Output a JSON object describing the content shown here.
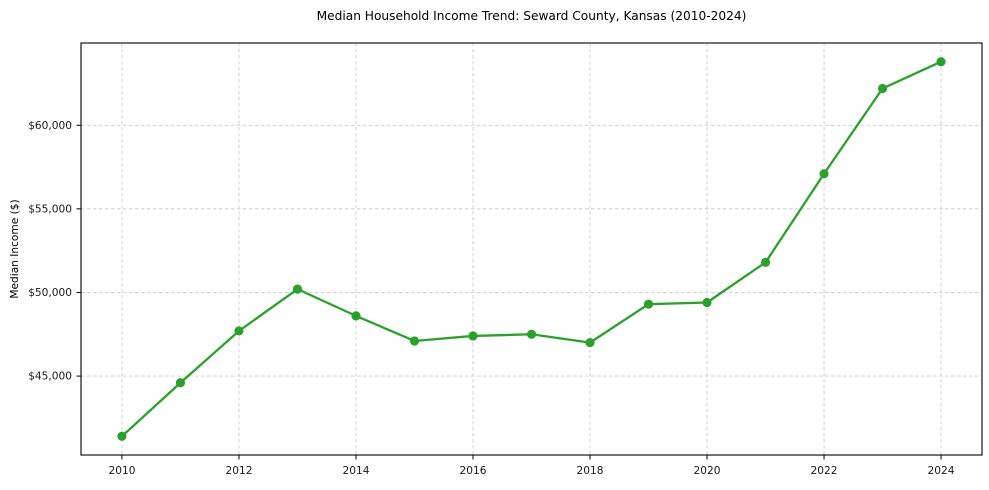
{
  "chart_data": {
    "type": "line",
    "title": "Median Household Income Trend: Seward County, Kansas (2010-2024)",
    "xlabel": "",
    "ylabel": "Median Income ($)",
    "x": [
      2010,
      2011,
      2012,
      2013,
      2014,
      2015,
      2016,
      2017,
      2018,
      2019,
      2020,
      2021,
      2022,
      2023,
      2024
    ],
    "values": [
      41400,
      44600,
      47700,
      50200,
      48600,
      47100,
      47400,
      47500,
      47000,
      49300,
      49400,
      51800,
      57100,
      62200,
      63800
    ],
    "xticks": [
      2010,
      2012,
      2014,
      2016,
      2018,
      2020,
      2022,
      2024
    ],
    "xtick_labels": [
      "2010",
      "2012",
      "2014",
      "2016",
      "2018",
      "2020",
      "2022",
      "2024"
    ],
    "yticks": [
      45000,
      50000,
      55000,
      60000
    ],
    "ytick_labels": [
      "$45,000",
      "$50,000",
      "$55,000",
      "$60,000"
    ],
    "xlim": [
      2009.3,
      2024.7
    ],
    "ylim": [
      40280,
      64920
    ],
    "grid": true,
    "grid_style": "dashed",
    "legend": false,
    "marker": "circle",
    "line_color": "#2ca02c"
  },
  "colors": {
    "line": "#2ca02c",
    "grid": "#cccccc",
    "spine": "#000000",
    "tick_text": "#1a1a1a",
    "background": "#ffffff"
  }
}
